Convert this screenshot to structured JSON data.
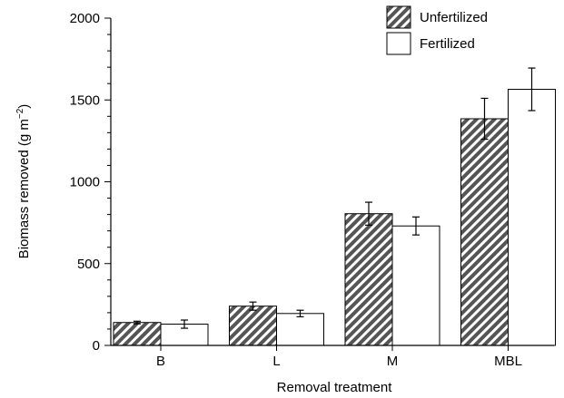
{
  "chart_data": {
    "type": "bar",
    "xlabel": "Removal treatment",
    "ylabel_main": "Biomass removed (g m",
    "ylabel_sup": "−2",
    "ylabel_close": ")",
    "categories": [
      "B",
      "L",
      "M",
      "MBL"
    ],
    "ylim": [
      0,
      2000
    ],
    "yticks": [
      "0",
      "500",
      "1000",
      "1500",
      "2000"
    ],
    "ytick_values": [
      0,
      500,
      1000,
      1500,
      2000
    ],
    "legend_position": "top-right",
    "series": [
      {
        "name": "Unfertilized",
        "pattern": "diagonal-hatch",
        "values": [
          140,
          240,
          805,
          1385
        ],
        "errors": [
          8,
          25,
          70,
          125
        ]
      },
      {
        "name": "Fertilized",
        "pattern": "solid-white",
        "values": [
          130,
          195,
          730,
          1565
        ],
        "errors": [
          25,
          20,
          55,
          130
        ]
      }
    ],
    "colors": {
      "axis": "#000000",
      "hatch": "#555555",
      "fill": "#ffffff"
    }
  }
}
